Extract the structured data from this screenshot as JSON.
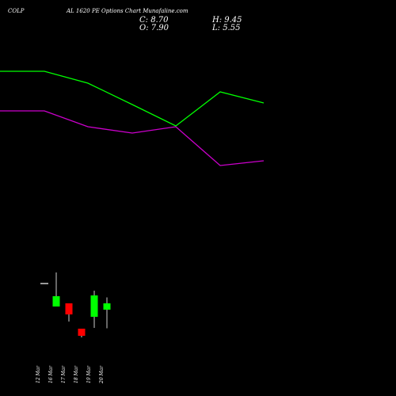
{
  "header": {
    "symbol": "COLP",
    "title": "AL 1620 PE Options Chart Munafaline.com",
    "close": "C: 8.70",
    "high": "H: 9.45",
    "open": "O: 7.90",
    "low": "L: 5.55"
  },
  "colors": {
    "background": "#000000",
    "up": "#00ff00",
    "down": "#ff0000",
    "neutral": "#ffffff",
    "upper_band": "#00ff00",
    "lower_band": "#cc00cc",
    "text": "#ffffff"
  },
  "chart_data": {
    "type": "candlestick",
    "title": "AL 1620 PE Options Chart Munafaline.com",
    "categories": [
      "12 Mar",
      "16 Mar",
      "17 Mar",
      "18 Mar",
      "19 Mar",
      "20 Mar"
    ],
    "candles": [
      {
        "date": "12 Mar",
        "open": 11.2,
        "high": 11.2,
        "low": 11.2,
        "close": 11.2,
        "color": "neutral"
      },
      {
        "date": "16 Mar",
        "open": 8.3,
        "high": 12.6,
        "low": 8.3,
        "close": 9.6,
        "color": "up"
      },
      {
        "date": "17 Mar",
        "open": 8.7,
        "high": 8.7,
        "low": 6.4,
        "close": 7.3,
        "color": "down"
      },
      {
        "date": "18 Mar",
        "open": 5.5,
        "high": 5.5,
        "low": 4.4,
        "close": 4.6,
        "color": "down"
      },
      {
        "date": "19 Mar",
        "open": 7.0,
        "high": 10.3,
        "low": 5.6,
        "close": 9.7,
        "color": "up"
      },
      {
        "date": "20 Mar",
        "open": 7.9,
        "high": 9.45,
        "low": 5.55,
        "close": 8.7,
        "color": "up"
      }
    ],
    "band_x": [
      "",
      "16 Mar",
      "17 Mar",
      "18 Mar",
      "19 Mar",
      "20 Mar",
      ""
    ],
    "upper_band": [
      38.0,
      38.0,
      36.5,
      33.8,
      31.1,
      35.4,
      34.0
    ],
    "lower_band": [
      33.0,
      33.0,
      31.0,
      30.2,
      31.0,
      26.1,
      26.7
    ],
    "ylim": [
      3.0,
      43.0
    ],
    "grid": false,
    "legend": "none"
  }
}
